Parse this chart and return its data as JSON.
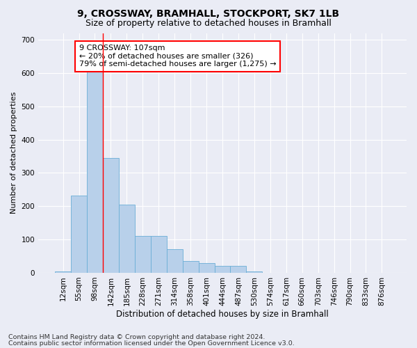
{
  "title1": "9, CROSSWAY, BRAMHALL, STOCKPORT, SK7 1LB",
  "title2": "Size of property relative to detached houses in Bramhall",
  "xlabel": "Distribution of detached houses by size in Bramhall",
  "ylabel": "Number of detached properties",
  "footnote1": "Contains HM Land Registry data © Crown copyright and database right 2024.",
  "footnote2": "Contains public sector information licensed under the Open Government Licence v3.0.",
  "bar_labels": [
    "12sqm",
    "55sqm",
    "98sqm",
    "142sqm",
    "185sqm",
    "228sqm",
    "271sqm",
    "314sqm",
    "358sqm",
    "401sqm",
    "444sqm",
    "487sqm",
    "530sqm",
    "574sqm",
    "617sqm",
    "660sqm",
    "703sqm",
    "746sqm",
    "790sqm",
    "833sqm",
    "876sqm"
  ],
  "bar_values": [
    5,
    232,
    655,
    345,
    205,
    110,
    110,
    70,
    35,
    30,
    20,
    20,
    5,
    0,
    0,
    0,
    0,
    0,
    0,
    0,
    0
  ],
  "bar_color": "#b8d0ea",
  "bar_edgecolor": "#6aaed6",
  "vline_x": 2.5,
  "vline_color": "red",
  "annotation_text": "9 CROSSWAY: 107sqm\n← 20% of detached houses are smaller (326)\n79% of semi-detached houses are larger (1,275) →",
  "annotation_box_facecolor": "white",
  "annotation_box_edgecolor": "red",
  "ylim": [
    0,
    720
  ],
  "yticks": [
    0,
    100,
    200,
    300,
    400,
    500,
    600,
    700
  ],
  "bg_color": "#eaecf5",
  "plot_bg_color": "#eaecf5",
  "grid_color": "white",
  "title1_fontsize": 10,
  "title2_fontsize": 9,
  "xlabel_fontsize": 8.5,
  "ylabel_fontsize": 8,
  "tick_fontsize": 7.5,
  "annotation_fontsize": 8,
  "footnote_fontsize": 6.8
}
